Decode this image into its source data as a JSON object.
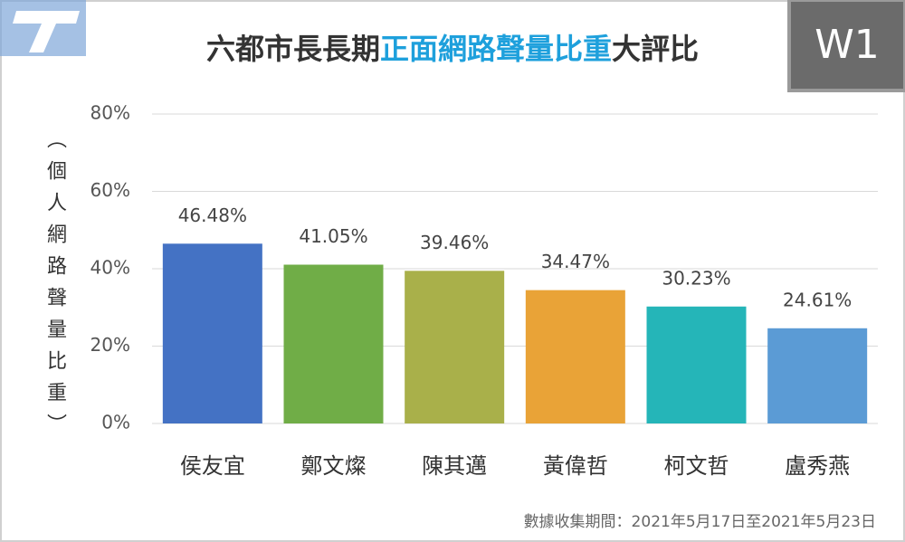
{
  "chart_data": {
    "type": "bar",
    "title": [
      "六都市長長期",
      "正面網路聲量比重",
      "大評比"
    ],
    "title_colors": [
      "#333333",
      "#1ea0dc",
      "#333333"
    ],
    "badge": "W1",
    "ylabel": "（個人網路聲量比重）",
    "footnote": "數據收集期間：2021年5月17日至2021年5月23日",
    "categories": [
      "侯友宜",
      "鄭文燦",
      "陳其邁",
      "黃偉哲",
      "柯文哲",
      "盧秀燕"
    ],
    "values": [
      46.48,
      41.05,
      39.46,
      34.47,
      30.23,
      24.61
    ],
    "value_labels": [
      "46.48%",
      "41.05%",
      "39.46%",
      "34.47%",
      "30.23%",
      "24.61%"
    ],
    "colors": [
      "#4472c4",
      "#70ad47",
      "#a9b04a",
      "#e9a337",
      "#25b5b8",
      "#5b9bd5"
    ],
    "ylim": [
      0,
      80
    ],
    "yticks": [
      {
        "value": 0,
        "label": "0%"
      },
      {
        "value": 20,
        "label": "20%"
      },
      {
        "value": 40,
        "label": "40%"
      },
      {
        "value": 60,
        "label": "60%"
      },
      {
        "value": 80,
        "label": "80%"
      }
    ],
    "grid": true
  }
}
